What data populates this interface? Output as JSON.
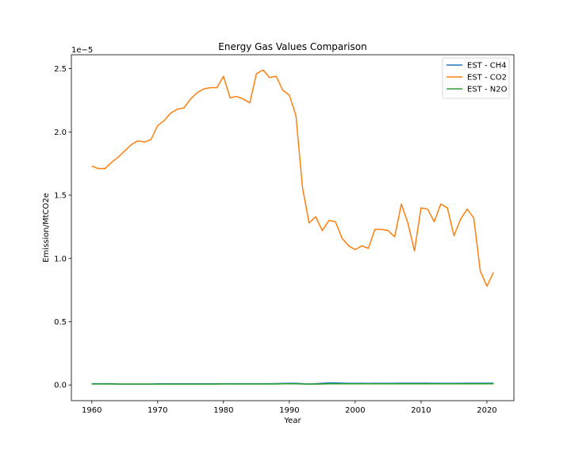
{
  "chart_data": {
    "type": "line",
    "title": "Energy Gas Values Comparison",
    "xlabel": "Year",
    "ylabel": "Emission/MtCO2e",
    "y_offset_label": "1e−5",
    "y_scale_factor": 1e-05,
    "xlim": [
      1956.9,
      2024.1
    ],
    "ylim": [
      -0.124,
      2.61
    ],
    "x_ticks": [
      1960,
      1970,
      1980,
      1990,
      2000,
      2010,
      2020
    ],
    "y_ticks": [
      0.0,
      0.5,
      1.0,
      1.5,
      2.0,
      2.5
    ],
    "y_tick_labels": [
      "0.0",
      "0.5",
      "1.0",
      "1.5",
      "2.0",
      "2.5"
    ],
    "grid": false,
    "legend_position": "top-right",
    "x": [
      1960,
      1961,
      1962,
      1963,
      1964,
      1965,
      1966,
      1967,
      1968,
      1969,
      1970,
      1971,
      1972,
      1973,
      1974,
      1975,
      1976,
      1977,
      1978,
      1979,
      1980,
      1981,
      1982,
      1983,
      1984,
      1985,
      1986,
      1987,
      1988,
      1989,
      1990,
      1991,
      1992,
      1993,
      1994,
      1995,
      1996,
      1997,
      1998,
      1999,
      2000,
      2001,
      2002,
      2003,
      2004,
      2005,
      2006,
      2007,
      2008,
      2009,
      2010,
      2011,
      2012,
      2013,
      2014,
      2015,
      2016,
      2017,
      2018,
      2019,
      2020,
      2021
    ],
    "series": [
      {
        "name": "EST - CH4",
        "color": "#1f77b4",
        "values": [
          0.01,
          0.01,
          0.01,
          0.01,
          0.008,
          0.008,
          0.008,
          0.008,
          0.008,
          0.008,
          0.009,
          0.009,
          0.009,
          0.009,
          0.009,
          0.009,
          0.009,
          0.009,
          0.009,
          0.009,
          0.01,
          0.01,
          0.01,
          0.01,
          0.01,
          0.01,
          0.01,
          0.01,
          0.011,
          0.012,
          0.013,
          0.013,
          0.01,
          0.008,
          0.01,
          0.013,
          0.016,
          0.016,
          0.014,
          0.013,
          0.013,
          0.013,
          0.012,
          0.013,
          0.013,
          0.013,
          0.013,
          0.014,
          0.014,
          0.014,
          0.014,
          0.014,
          0.013,
          0.013,
          0.013,
          0.013,
          0.013,
          0.014,
          0.014,
          0.014,
          0.014,
          0.014
        ]
      },
      {
        "name": "EST - CO2",
        "color": "#ff7f0e",
        "values": [
          1.73,
          1.71,
          1.71,
          1.76,
          1.8,
          1.85,
          1.9,
          1.93,
          1.92,
          1.94,
          2.05,
          2.09,
          2.15,
          2.18,
          2.19,
          2.26,
          2.31,
          2.34,
          2.35,
          2.35,
          2.44,
          2.27,
          2.28,
          2.26,
          2.23,
          2.46,
          2.49,
          2.43,
          2.44,
          2.33,
          2.29,
          2.13,
          1.56,
          1.28,
          1.33,
          1.22,
          1.3,
          1.29,
          1.16,
          1.1,
          1.07,
          1.1,
          1.08,
          1.23,
          1.23,
          1.22,
          1.17,
          1.43,
          1.28,
          1.06,
          1.4,
          1.39,
          1.29,
          1.43,
          1.4,
          1.18,
          1.31,
          1.39,
          1.32,
          0.9,
          0.78,
          0.89
        ]
      },
      {
        "name": "EST - N2O",
        "color": "#2ca02c",
        "values": [
          0.008,
          0.008,
          0.008,
          0.008,
          0.007,
          0.007,
          0.007,
          0.007,
          0.007,
          0.007,
          0.007,
          0.007,
          0.007,
          0.007,
          0.007,
          0.007,
          0.007,
          0.007,
          0.007,
          0.007,
          0.008,
          0.008,
          0.008,
          0.008,
          0.008,
          0.008,
          0.008,
          0.008,
          0.008,
          0.009,
          0.009,
          0.009,
          0.008,
          0.007,
          0.007,
          0.008,
          0.009,
          0.009,
          0.009,
          0.009,
          0.009,
          0.009,
          0.009,
          0.009,
          0.009,
          0.009,
          0.009,
          0.009,
          0.009,
          0.009,
          0.009,
          0.009,
          0.009,
          0.009,
          0.009,
          0.009,
          0.009,
          0.009,
          0.009,
          0.009,
          0.009,
          0.009
        ]
      }
    ]
  }
}
